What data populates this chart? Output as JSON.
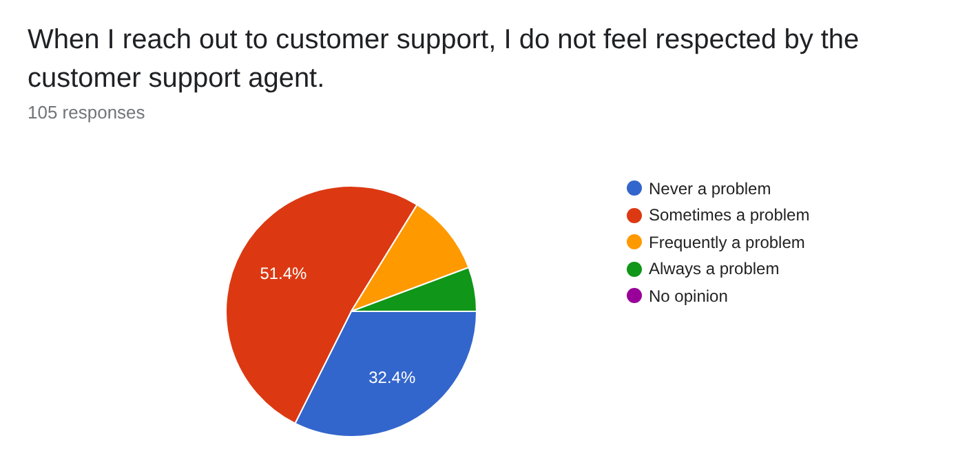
{
  "chart_data": {
    "type": "pie",
    "title": "When I reach out to customer support, I do not feel respected by the customer support agent.",
    "subtitle": "105 responses",
    "categories": [
      "Never a problem",
      "Sometimes a problem",
      "Frequently a problem",
      "Always a problem",
      "No opinion"
    ],
    "values": [
      32.4,
      51.4,
      10.5,
      5.7,
      0
    ],
    "colors": [
      "#3366cc",
      "#dc3912",
      "#ff9900",
      "#109618",
      "#990099"
    ],
    "value_labels": [
      "32.4%",
      "51.4%",
      null,
      null,
      null
    ],
    "legend": "right"
  }
}
